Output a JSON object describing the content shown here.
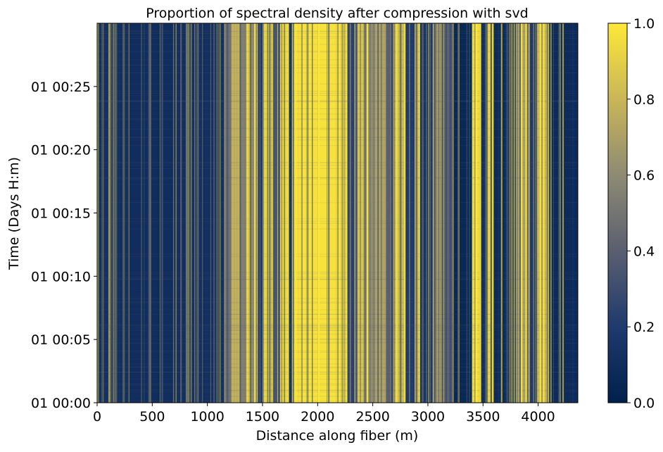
{
  "chart_data": {
    "type": "heatmap",
    "title": "Proportion of spectral density after compression with svd",
    "xlabel": "Distance along fiber (m)",
    "ylabel": "Time (Days H:m)",
    "xlim": [
      0,
      4360
    ],
    "x_ticks": [
      0,
      500,
      1000,
      1500,
      2000,
      2500,
      3000,
      3500,
      4000
    ],
    "x_tick_labels": [
      "0",
      "500",
      "1000",
      "1500",
      "2000",
      "2500",
      "3000",
      "3500",
      "4000"
    ],
    "ylim_minutes": [
      0,
      30
    ],
    "y_ticks_minutes": [
      0,
      5,
      10,
      15,
      20,
      25
    ],
    "y_tick_labels": [
      "01 00:00",
      "01 00:05",
      "01 00:10",
      "01 00:15",
      "01 00:20",
      "01 00:25"
    ],
    "colorbar": {
      "colormap": "cividis-like",
      "range": [
        0.0,
        1.0
      ],
      "ticks": [
        0.0,
        0.2,
        0.4,
        0.6,
        0.8,
        1.0
      ],
      "tick_labels": [
        "0.0",
        "0.2",
        "0.4",
        "0.6",
        "0.8",
        "1.0"
      ],
      "colors": [
        "#00204c",
        "#1f3a6e",
        "#5a5f70",
        "#8e8a73",
        "#c9b658",
        "#fee838"
      ]
    },
    "bands": [
      {
        "x0": 0,
        "x1": 130,
        "value": 0.12
      },
      {
        "x0": 130,
        "x1": 145,
        "value": 0.45
      },
      {
        "x0": 145,
        "x1": 160,
        "value": 0.15
      },
      {
        "x0": 160,
        "x1": 180,
        "value": 0.8
      },
      {
        "x0": 180,
        "x1": 700,
        "value": 0.1
      },
      {
        "x0": 700,
        "x1": 1150,
        "value": 0.12
      },
      {
        "x0": 1150,
        "x1": 1210,
        "value": 0.45
      },
      {
        "x0": 1210,
        "x1": 1290,
        "value": 0.78
      },
      {
        "x0": 1290,
        "x1": 1350,
        "value": 0.55
      },
      {
        "x0": 1350,
        "x1": 1400,
        "value": 0.85
      },
      {
        "x0": 1400,
        "x1": 1460,
        "value": 0.6
      },
      {
        "x0": 1460,
        "x1": 1510,
        "value": 0.2
      },
      {
        "x0": 1510,
        "x1": 1600,
        "value": 0.92
      },
      {
        "x0": 1600,
        "x1": 1660,
        "value": 0.35
      },
      {
        "x0": 1660,
        "x1": 1740,
        "value": 0.95
      },
      {
        "x0": 1740,
        "x1": 1770,
        "value": 0.15
      },
      {
        "x0": 1770,
        "x1": 2270,
        "value": 0.97
      },
      {
        "x0": 2270,
        "x1": 2360,
        "value": 0.25
      },
      {
        "x0": 2360,
        "x1": 2420,
        "value": 0.85
      },
      {
        "x0": 2420,
        "x1": 2520,
        "value": 0.55
      },
      {
        "x0": 2520,
        "x1": 2620,
        "value": 0.7
      },
      {
        "x0": 2620,
        "x1": 2700,
        "value": 0.4
      },
      {
        "x0": 2700,
        "x1": 2790,
        "value": 0.9
      },
      {
        "x0": 2790,
        "x1": 2880,
        "value": 0.2
      },
      {
        "x0": 2880,
        "x1": 2930,
        "value": 0.85
      },
      {
        "x0": 2930,
        "x1": 3050,
        "value": 0.15
      },
      {
        "x0": 3050,
        "x1": 3110,
        "value": 0.5
      },
      {
        "x0": 3110,
        "x1": 3220,
        "value": 0.35
      },
      {
        "x0": 3220,
        "x1": 3400,
        "value": 0.06
      },
      {
        "x0": 3400,
        "x1": 3480,
        "value": 0.95
      },
      {
        "x0": 3480,
        "x1": 3540,
        "value": 0.1
      },
      {
        "x0": 3540,
        "x1": 3570,
        "value": 0.9
      },
      {
        "x0": 3570,
        "x1": 3800,
        "value": 0.08
      },
      {
        "x0": 3800,
        "x1": 3920,
        "value": 0.7
      },
      {
        "x0": 3920,
        "x1": 3990,
        "value": 0.2
      },
      {
        "x0": 3990,
        "x1": 4080,
        "value": 0.8
      },
      {
        "x0": 4080,
        "x1": 4360,
        "value": 0.08
      }
    ],
    "lines": [
      {
        "x": 0,
        "value": 0.9
      },
      {
        "x": 470,
        "value": 0.35
      },
      {
        "x": 590,
        "value": 0.35
      },
      {
        "x": 760,
        "value": 0.4
      },
      {
        "x": 905,
        "value": 0.35
      },
      {
        "x": 1060,
        "value": 0.35
      },
      {
        "x": 1430,
        "value": 1.0
      },
      {
        "x": 1800,
        "value": 1.0
      },
      {
        "x": 2010,
        "value": 1.0
      },
      {
        "x": 2450,
        "value": 1.0
      },
      {
        "x": 2720,
        "value": 1.0
      },
      {
        "x": 2790,
        "value": 1.0
      },
      {
        "x": 3050,
        "value": 0.7
      },
      {
        "x": 3440,
        "value": 1.0
      },
      {
        "x": 3475,
        "value": 1.0
      },
      {
        "x": 3585,
        "value": 1.0
      },
      {
        "x": 3850,
        "value": 1.0
      },
      {
        "x": 3890,
        "value": 1.0
      },
      {
        "x": 4020,
        "value": 1.0
      },
      {
        "x": 4050,
        "value": 1.0
      },
      {
        "x": 4090,
        "value": 0.85
      }
    ]
  }
}
